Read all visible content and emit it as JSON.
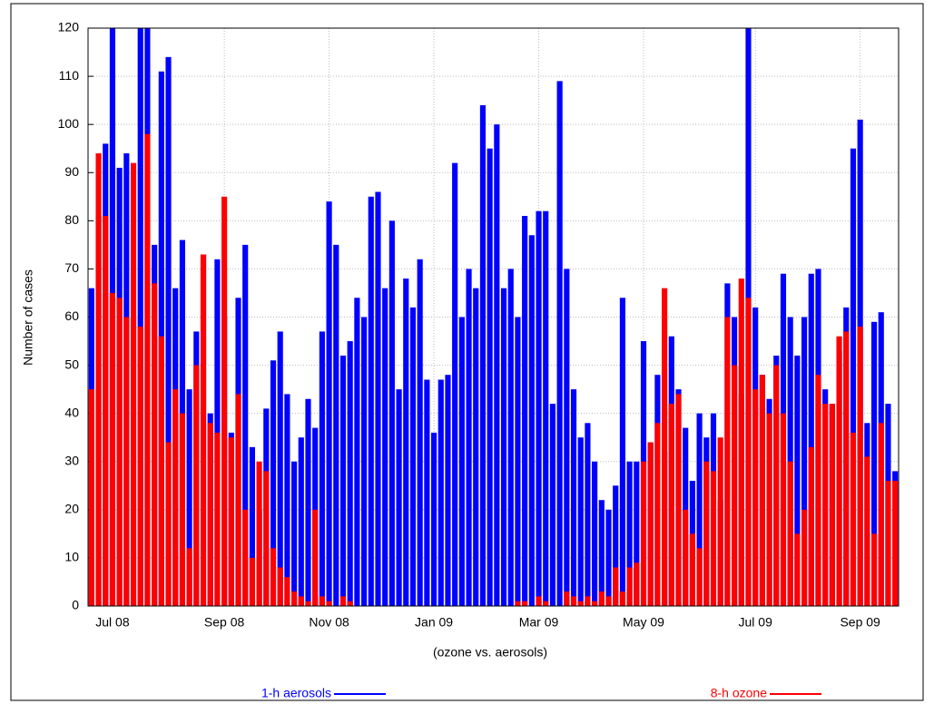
{
  "chart_data": {
    "type": "bar",
    "x_label": "(ozone vs. aerosols)",
    "y_label": "Number of cases",
    "categories": [
      null,
      null,
      null,
      "Jul 08",
      null,
      null,
      null,
      null,
      null,
      null,
      null,
      null,
      null,
      null,
      null,
      null,
      null,
      null,
      null,
      "Sep 08",
      null,
      null,
      null,
      null,
      null,
      null,
      null,
      null,
      null,
      null,
      null,
      null,
      null,
      null,
      "Nov 08",
      null,
      null,
      null,
      null,
      null,
      null,
      null,
      null,
      null,
      null,
      null,
      null,
      null,
      null,
      "Jan 09",
      null,
      null,
      null,
      null,
      null,
      null,
      null,
      null,
      null,
      null,
      null,
      null,
      null,
      null,
      "Mar 09",
      null,
      null,
      null,
      null,
      null,
      null,
      null,
      null,
      null,
      null,
      null,
      null,
      null,
      null,
      "May 09",
      null,
      null,
      null,
      null,
      null,
      null,
      null,
      null,
      null,
      null,
      null,
      null,
      null,
      null,
      null,
      "Jul 09",
      null,
      null,
      null,
      null,
      null,
      null,
      null,
      null,
      null,
      null,
      null,
      null,
      null,
      null,
      "Sep 09",
      null,
      null,
      null,
      null,
      null
    ],
    "series": [
      {
        "name": "1-h aerosols",
        "color": "#0000ff",
        "values": [
          66,
          81,
          96,
          120,
          91,
          94,
          60,
          120,
          120,
          75,
          111,
          114,
          66,
          76,
          45,
          57,
          73,
          40,
          72,
          60,
          36,
          64,
          75,
          33,
          20,
          41,
          51,
          57,
          44,
          30,
          35,
          43,
          37,
          57,
          84,
          75,
          52,
          55,
          64,
          60,
          85,
          86,
          66,
          80,
          45,
          68,
          62,
          72,
          47,
          36,
          47,
          48,
          92,
          60,
          70,
          66,
          104,
          95,
          100,
          66,
          70,
          60,
          81,
          77,
          82,
          82,
          42,
          109,
          70,
          45,
          35,
          38,
          30,
          22,
          20,
          25,
          64,
          30,
          30,
          55,
          34,
          48,
          32,
          56,
          45,
          37,
          26,
          40,
          35,
          40,
          22,
          67,
          60,
          44,
          120,
          62,
          48,
          43,
          52,
          69,
          60,
          52,
          60,
          69,
          70,
          45,
          42,
          53,
          62,
          95,
          101,
          38,
          59,
          61,
          42,
          28
        ]
      },
      {
        "name": "8-h ozone",
        "color": "#ff0000",
        "values": [
          45,
          94,
          81,
          65,
          64,
          60,
          92,
          58,
          98,
          67,
          56,
          34,
          45,
          40,
          12,
          50,
          73,
          38,
          36,
          85,
          35,
          44,
          20,
          10,
          30,
          28,
          12,
          8,
          6,
          3,
          2,
          1,
          20,
          2,
          1,
          0,
          2,
          1,
          0,
          0,
          0,
          0,
          0,
          0,
          0,
          0,
          0,
          0,
          0,
          0,
          0,
          0,
          0,
          0,
          0,
          0,
          0,
          0,
          0,
          0,
          0,
          1,
          1,
          0,
          2,
          1,
          0,
          0,
          3,
          2,
          1,
          2,
          1,
          3,
          2,
          8,
          3,
          8,
          9,
          30,
          34,
          38,
          66,
          42,
          44,
          20,
          15,
          12,
          30,
          28,
          35,
          60,
          50,
          68,
          64,
          45,
          48,
          40,
          50,
          40,
          30,
          15,
          20,
          33,
          48,
          42,
          42,
          56,
          57,
          36,
          58,
          31,
          15,
          38,
          26,
          26
        ]
      }
    ],
    "ylim": [
      0,
      120
    ],
    "yticks": [
      0,
      10,
      20,
      30,
      40,
      50,
      60,
      70,
      80,
      90,
      100,
      110,
      120
    ],
    "grid": true
  }
}
